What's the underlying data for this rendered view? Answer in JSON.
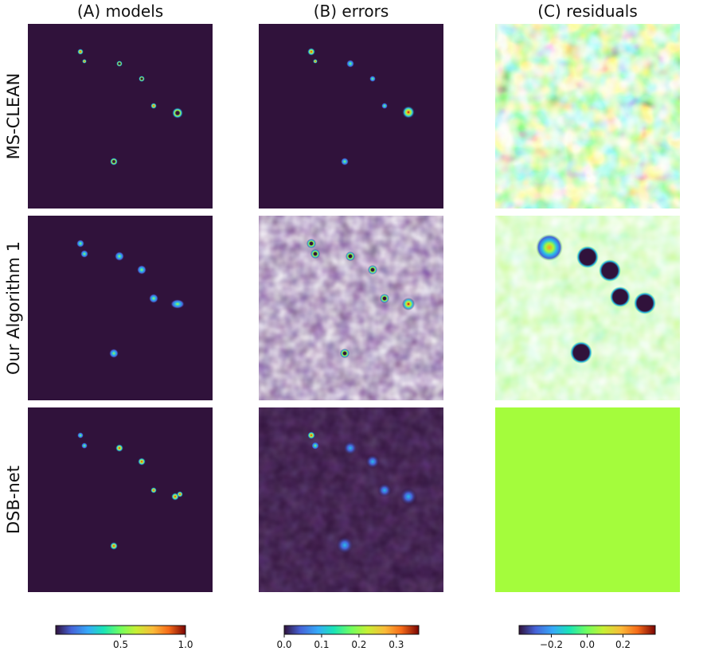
{
  "columns": [
    "(A) models",
    "(B) errors",
    "(C) residuals"
  ],
  "rows": [
    "MS-CLEAN",
    "Our Algorithm  1",
    "DSB-net"
  ],
  "colormap": "turbo",
  "background_colors": {
    "dark": "#30123b",
    "residual_flat": "#a4fc3c",
    "residual_bg": "#8ff05a"
  },
  "chart_data": [
    {
      "type": "heatmap",
      "title": "(A) models",
      "rows": [
        "MS-CLEAN",
        "Our Algorithm  1",
        "DSB-net"
      ],
      "colorbar": {
        "ticks": [
          "0.5",
          "1.0"
        ],
        "range": [
          0.0,
          1.0
        ]
      }
    },
    {
      "type": "heatmap",
      "title": "(B) errors",
      "rows": [
        "MS-CLEAN",
        "Our Algorithm  1",
        "DSB-net"
      ],
      "colorbar": {
        "ticks": [
          "0.0",
          "0.1",
          "0.2",
          "0.3"
        ],
        "range": [
          0.0,
          0.36
        ]
      }
    },
    {
      "type": "heatmap",
      "title": "(C) residuals",
      "rows": [
        "MS-CLEAN",
        "Our Algorithm  1",
        "DSB-net"
      ],
      "colorbar": {
        "ticks": [
          "−0.2",
          "0.0",
          "0.2"
        ],
        "range": [
          -0.38,
          0.38
        ]
      }
    }
  ]
}
